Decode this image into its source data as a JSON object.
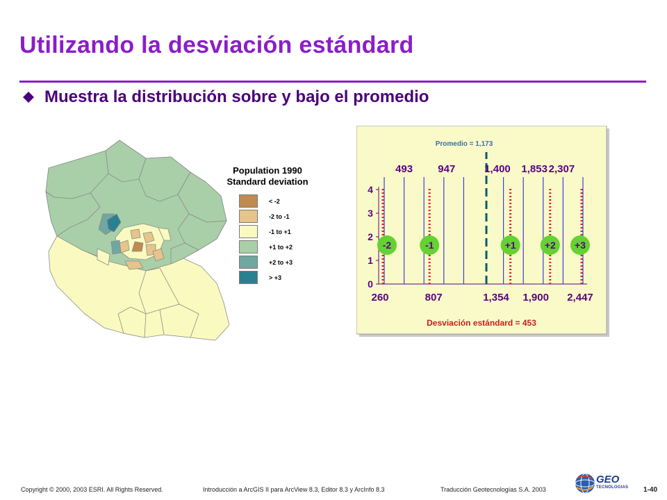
{
  "title": "Utilizando la desviación estándard",
  "bullet": "Muestra la distribución sobre y bajo el promedio",
  "legend": {
    "title_line1": "Population 1990",
    "title_line2": "Standard deviation",
    "items": [
      {
        "label": "< -2",
        "color": "#c08a50"
      },
      {
        "label": "-2 to -1",
        "color": "#e6c48a"
      },
      {
        "label": "-1 to +1",
        "color": "#fafac0"
      },
      {
        "label": "+1 to +2",
        "color": "#a9cfa8"
      },
      {
        "label": "+2 to +3",
        "color": "#6fa8a0"
      },
      {
        "label": "> +3",
        "color": "#2a8090"
      }
    ]
  },
  "chart_data": {
    "type": "histogram",
    "mean_label": "Promedio = 1,173",
    "std_label": "Desviación estándard = 453",
    "ylim": [
      0,
      4
    ],
    "y_ticks": [
      "0",
      "1",
      "2",
      "3",
      "4"
    ],
    "top_labels": [
      "493",
      "947",
      "1,400",
      "1,853",
      "2,307"
    ],
    "bottom_labels": [
      "260",
      "807",
      "1,354",
      "1,900",
      "2,447"
    ],
    "sd_labels": [
      "-2",
      "-1",
      "+1",
      "+2",
      "+3"
    ],
    "colors": {
      "bars": "#3c3cdc",
      "sd_lines": "#dc1e32",
      "mean_line": "#0a5a6e",
      "sd_circle": "#64d232",
      "label_text": "#5a0082",
      "std_text": "#c81e1e",
      "mean_text": "#3c6eaa",
      "box_fill": "#fafac8"
    }
  },
  "footer": {
    "copyright": "Copyright © 2000, 2003 ESRI.  All Rights Reserved.",
    "course": "Introducción a ArcGIS II para ArcView 8.3, Editor 8.3 y ArcInfo 8.3",
    "translation": "Traducción Geotecnologías S.A.  2003",
    "page": "1-40"
  },
  "logo": {
    "name": "GEO",
    "subtitle": "TECNOLOGIAS"
  }
}
